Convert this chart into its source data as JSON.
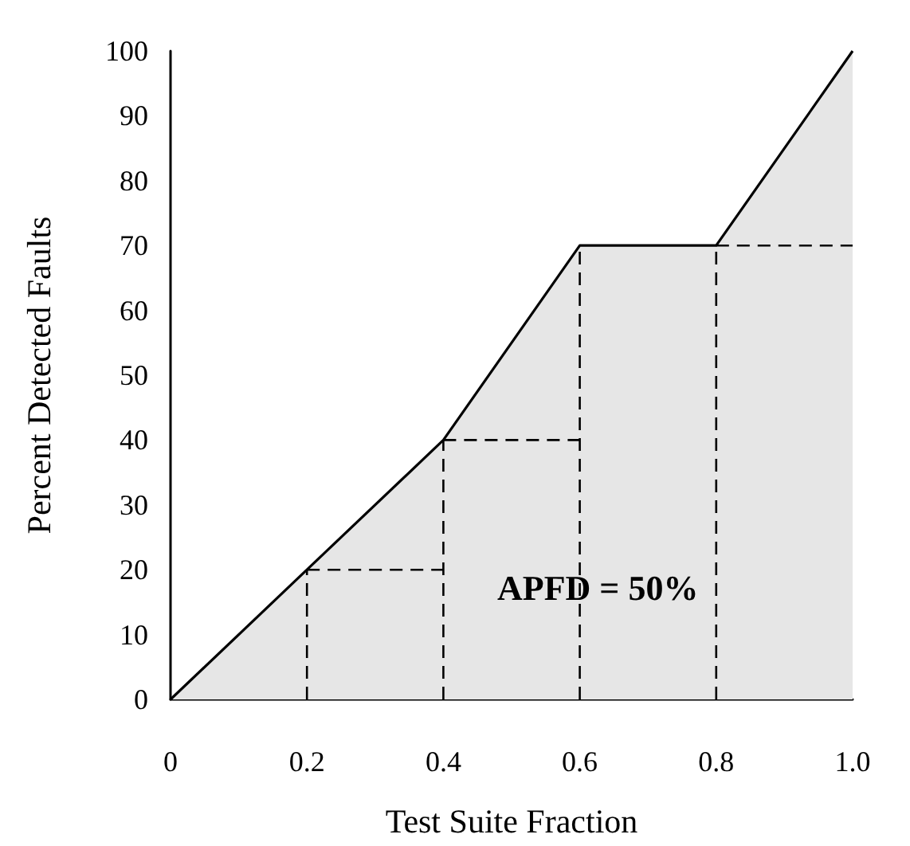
{
  "chart_data": {
    "type": "area",
    "xlabel": "Test Suite Fraction",
    "ylabel": "Percent Detected Faults",
    "xlim": [
      0,
      1
    ],
    "xticks": [
      0,
      0.2,
      0.4,
      0.6,
      0.8,
      {
        "value": 1,
        "label": "1.0"
      }
    ],
    "ylim": [
      0,
      100
    ],
    "yticks": [
      0,
      10,
      20,
      30,
      40,
      50,
      60,
      70,
      80,
      90,
      100
    ],
    "marker": "none",
    "annotations": [
      "APFD = 50%"
    ],
    "series": [
      {
        "color": "#e6e6e6",
        "x": [
          0,
          0.2,
          0.4,
          0.6,
          0.8,
          1
        ],
        "values": [
          0,
          20,
          40,
          70,
          70,
          100
        ]
      },
      {
        "type": "line",
        "line_style": "dashed",
        "color": "#000000",
        "x": [
          0.2,
          0.2
        ],
        "values": [
          0,
          20
        ]
      },
      {
        "type": "line",
        "line_style": "dashed",
        "color": "#000000",
        "x": [
          0.2,
          0.4
        ],
        "values": [
          20,
          20
        ]
      },
      {
        "type": "line",
        "line_style": "dashed",
        "color": "#000000",
        "x": [
          0.4,
          0.4
        ],
        "values": [
          0,
          40
        ]
      },
      {
        "type": "line",
        "line_style": "dashed",
        "color": "#000000",
        "x": [
          0.4,
          0.6
        ],
        "values": [
          40,
          40
        ]
      },
      {
        "type": "line",
        "line_style": "dashed",
        "color": "#000000",
        "x": [
          0.6,
          0.6
        ],
        "values": [
          0,
          70
        ]
      },
      {
        "type": "line",
        "line_style": "dashed",
        "color": "#000000",
        "x": [
          0.8,
          0.8
        ],
        "values": [
          0,
          70
        ]
      },
      {
        "type": "line",
        "line_style": "dashed",
        "color": "#000000",
        "x": [
          0.8,
          1
        ],
        "values": [
          70,
          70
        ]
      }
    ]
  }
}
